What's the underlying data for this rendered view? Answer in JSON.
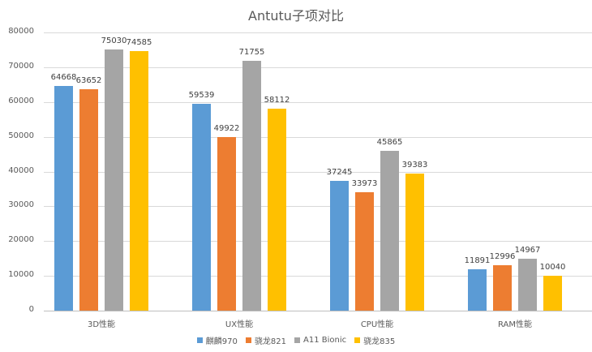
{
  "chart_data": {
    "type": "bar",
    "title": "Antutu子项对比",
    "xlabel": "",
    "ylabel": "",
    "ylim": [
      0,
      80000
    ],
    "yticks": [
      0,
      10000,
      20000,
      30000,
      40000,
      50000,
      60000,
      70000,
      80000
    ],
    "grid": true,
    "legend_position": "bottom",
    "categories": [
      "3D性能",
      "UX性能",
      "CPU性能",
      "RAM性能"
    ],
    "series": [
      {
        "name": "麒麟970",
        "color": "#5b9bd5",
        "values": [
          64668,
          59539,
          37245,
          11891
        ]
      },
      {
        "name": "骁龙821",
        "color": "#ed7d31",
        "values": [
          63652,
          49922,
          33973,
          12996
        ]
      },
      {
        "name": "A11 Bionic",
        "color": "#a5a5a5",
        "values": [
          75030,
          71755,
          45865,
          14967
        ]
      },
      {
        "name": "骁龙835",
        "color": "#ffc000",
        "values": [
          74585,
          58112,
          39383,
          10040
        ]
      }
    ]
  }
}
